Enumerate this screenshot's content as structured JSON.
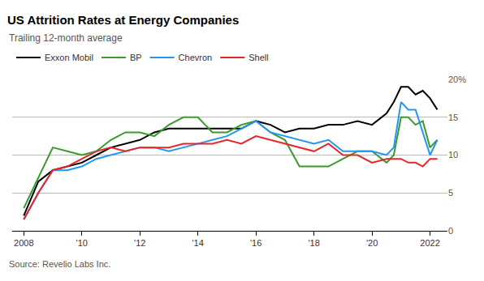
{
  "chart_data": {
    "type": "line",
    "title": "US Attrition Rates at Energy Companies",
    "subtitle": "Trailing 12-month average",
    "source": "Source: Revelio Labs Inc.",
    "x": [
      2008,
      2008.5,
      2009,
      2009.5,
      2010,
      2010.5,
      2011,
      2011.5,
      2012,
      2012.5,
      2013,
      2013.5,
      2014,
      2014.5,
      2015,
      2015.5,
      2016,
      2016.5,
      2017,
      2017.5,
      2018,
      2018.5,
      2019,
      2019.5,
      2020,
      2020.5,
      2020.75,
      2021,
      2021.25,
      2021.5,
      2021.75,
      2022,
      2022.25
    ],
    "series": [
      {
        "name": "Exxon Mobil",
        "color": "#000000",
        "values": [
          2,
          6.5,
          8,
          8.5,
          9,
          10,
          11,
          11.5,
          12,
          13,
          13.5,
          13.5,
          13.5,
          13.5,
          13.5,
          13.5,
          14.5,
          14,
          13,
          13.5,
          13.5,
          14,
          14,
          14.5,
          14,
          15.5,
          17,
          19,
          19,
          18,
          18.5,
          17.5,
          16
        ]
      },
      {
        "name": "BP",
        "color": "#3a9a2b",
        "values": [
          3,
          7,
          11,
          10.5,
          10,
          10.5,
          12,
          13,
          13,
          12.5,
          14,
          15,
          15,
          13,
          13,
          14,
          14.5,
          13,
          12,
          8.5,
          8.5,
          8.5,
          9.5,
          10.5,
          10.5,
          9,
          10,
          15,
          15,
          14,
          14.5,
          11,
          12
        ]
      },
      {
        "name": "Chevron",
        "color": "#2196f3",
        "values": [
          1.5,
          5,
          8,
          8,
          8.5,
          9.5,
          10,
          10.5,
          11,
          11,
          10.5,
          11,
          11.5,
          12,
          12.5,
          13.5,
          14.5,
          13,
          12.5,
          12,
          11.5,
          12,
          10.5,
          10.5,
          10.5,
          10,
          11,
          17,
          16,
          16,
          13,
          10,
          12
        ]
      },
      {
        "name": "Shell",
        "color": "#e8262a",
        "values": [
          1.5,
          5,
          8,
          8.5,
          9.5,
          10.5,
          11,
          10.5,
          11,
          11,
          11,
          11.5,
          11.5,
          11.5,
          12,
          11.5,
          12.5,
          12,
          11.5,
          11,
          10.5,
          11.5,
          10,
          10,
          9,
          9.5,
          9.5,
          9.5,
          9,
          9,
          8.5,
          9.5,
          9.5
        ]
      }
    ],
    "xlim": [
      2007.6,
      2022.6
    ],
    "xticks": [
      {
        "value": 2008,
        "label": "2008"
      },
      {
        "value": 2010,
        "label": "'10"
      },
      {
        "value": 2012,
        "label": "'12"
      },
      {
        "value": 2014,
        "label": "'14"
      },
      {
        "value": 2016,
        "label": "'16"
      },
      {
        "value": 2018,
        "label": "'18"
      },
      {
        "value": 2020,
        "label": "'20"
      },
      {
        "value": 2022,
        "label": "2022"
      }
    ],
    "ylim": [
      0,
      20
    ],
    "yticks": [
      0,
      5,
      10,
      15,
      {
        "value": 20,
        "label": "20%"
      }
    ],
    "grid": true,
    "legend": "top-left"
  }
}
